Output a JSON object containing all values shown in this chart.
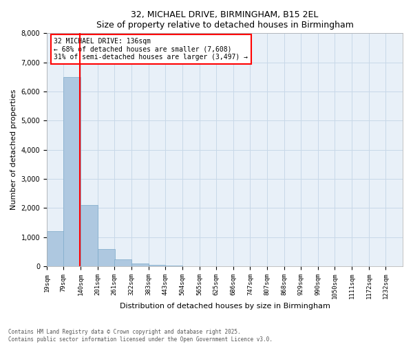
{
  "title_line1": "32, MICHAEL DRIVE, BIRMINGHAM, B15 2EL",
  "title_line2": "Size of property relative to detached houses in Birmingham",
  "xlabel": "Distribution of detached houses by size in Birmingham",
  "ylabel": "Number of detached properties",
  "annotation_line1": "32 MICHAEL DRIVE: 136sqm",
  "annotation_line2": "← 68% of detached houses are smaller (7,608)",
  "annotation_line3": "31% of semi-detached houses are larger (3,497) →",
  "bar_left_edges": [
    19,
    79,
    140,
    201,
    261,
    322,
    383,
    443,
    504,
    565,
    625,
    686,
    747,
    807,
    868,
    929,
    990,
    1050,
    1111,
    1172
  ],
  "bar_heights": [
    1200,
    6500,
    2100,
    600,
    250,
    100,
    60,
    30,
    10,
    5,
    2,
    1,
    1,
    0,
    0,
    0,
    0,
    0,
    0,
    0
  ],
  "bin_width": 61,
  "bar_color": "#aec8e0",
  "bar_edge_color": "#7aa8c8",
  "red_line_x": 136,
  "ylim": [
    0,
    8000
  ],
  "yticks": [
    0,
    1000,
    2000,
    3000,
    4000,
    5000,
    6000,
    7000,
    8000
  ],
  "x_tick_labels": [
    "19sqm",
    "79sqm",
    "140sqm",
    "201sqm",
    "261sqm",
    "322sqm",
    "383sqm",
    "443sqm",
    "504sqm",
    "565sqm",
    "625sqm",
    "686sqm",
    "747sqm",
    "807sqm",
    "868sqm",
    "929sqm",
    "990sqm",
    "1050sqm",
    "1111sqm",
    "1172sqm",
    "1232sqm"
  ],
  "x_tick_positions": [
    19,
    79,
    140,
    201,
    261,
    322,
    383,
    443,
    504,
    565,
    625,
    686,
    747,
    807,
    868,
    929,
    990,
    1050,
    1111,
    1172,
    1232
  ],
  "grid_color": "#c8d8e8",
  "background_color": "#e8f0f8",
  "footer_line1": "Contains HM Land Registry data © Crown copyright and database right 2025.",
  "footer_line2": "Contains public sector information licensed under the Open Government Licence v3.0."
}
